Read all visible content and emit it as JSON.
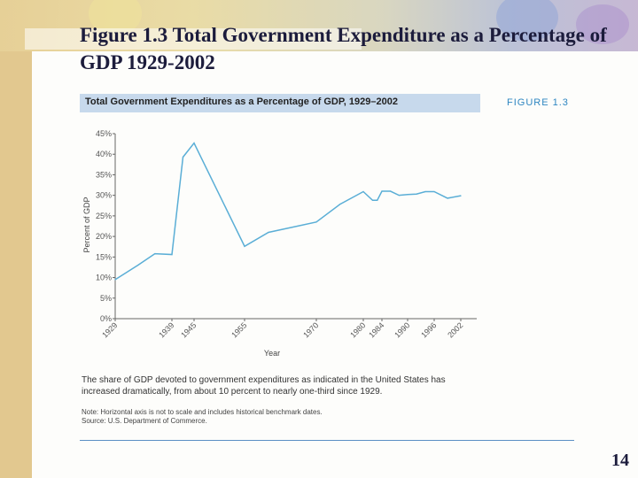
{
  "slide": {
    "title": "Figure 1.3 Total Government Expenditure as a Percentage of GDP 1929-2002",
    "page_number": "14"
  },
  "figure": {
    "header": "Total Government Expenditures as a Percentage of GDP, 1929–2002",
    "number_label": "FIGURE 1.3",
    "caption": "The share of GDP devoted to government expenditures as indicated in the United States has increased dramatically, from about 10 percent to nearly one-third since 1929.",
    "note": "Note: Horizontal axis is not to scale and includes historical benchmark dates.",
    "source": "Source: U.S. Department of Commerce."
  },
  "colors": {
    "line": "#5aaed6",
    "header_bg": "#c7d9ec",
    "figure_number": "#2e86c1",
    "rule": "#5b8fc4"
  },
  "chart_data": {
    "type": "line",
    "xlabel": "Year",
    "ylabel": "Percent of GDP",
    "ylim": [
      0,
      45
    ],
    "yticks": [
      "0%",
      "5%",
      "10%",
      "15%",
      "20%",
      "25%",
      "30%",
      "35%",
      "40%",
      "45%"
    ],
    "xticks": [
      "1929",
      "1939",
      "1945",
      "1955",
      "1970",
      "1980",
      "1984",
      "1990",
      "1996",
      "2002"
    ],
    "x_axis_scale": "non-uniform (not to scale)",
    "points": [
      {
        "x": "1929",
        "y": 9.5
      },
      {
        "x": "1933",
        "y": 13
      },
      {
        "x": "1936",
        "y": 15.8
      },
      {
        "x": "1939",
        "y": 15.6
      },
      {
        "x": "1942",
        "y": 39.3
      },
      {
        "x": "1945",
        "y": 42.7
      },
      {
        "x": "1955",
        "y": 17.6
      },
      {
        "x": "1960",
        "y": 21
      },
      {
        "x": "1970",
        "y": 23.5
      },
      {
        "x": "1975",
        "y": 27.8
      },
      {
        "x": "1980",
        "y": 30.9
      },
      {
        "x": "1982",
        "y": 28.8
      },
      {
        "x": "1983",
        "y": 28.8
      },
      {
        "x": "1984",
        "y": 31
      },
      {
        "x": "1986",
        "y": 31
      },
      {
        "x": "1988",
        "y": 30
      },
      {
        "x": "1990",
        "y": 30.2
      },
      {
        "x": "1992",
        "y": 30.3
      },
      {
        "x": "1994",
        "y": 30.9
      },
      {
        "x": "1996",
        "y": 30.9
      },
      {
        "x": "1999",
        "y": 29.3
      },
      {
        "x": "2002",
        "y": 29.9
      }
    ]
  }
}
